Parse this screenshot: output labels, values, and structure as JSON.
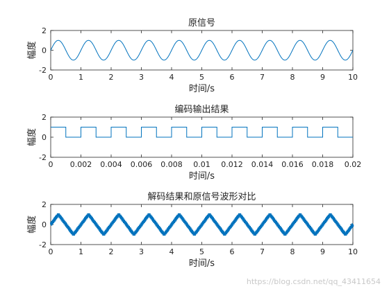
{
  "watermark": "https://blog.csdn.net/qq_43411654",
  "colors": {
    "line": "#0072BD",
    "axis": "#262626",
    "background": "#ffffff"
  },
  "chart_data": [
    {
      "type": "line",
      "title": "原信号",
      "xlabel": "时间/s",
      "ylabel": "幅度",
      "xlim": [
        0,
        10
      ],
      "ylim": [
        -2,
        2
      ],
      "xticks": [
        "0",
        "1",
        "2",
        "3",
        "4",
        "5",
        "6",
        "7",
        "8",
        "9",
        "10"
      ],
      "yticks": [
        "2",
        "0",
        "-2"
      ],
      "signal": {
        "kind": "sine",
        "amplitude": 1,
        "frequency_hz": 1,
        "phase_note": "starts at 0 rising",
        "x_range": [
          0,
          10
        ]
      },
      "grid": false
    },
    {
      "type": "line",
      "title": "编码输出结果",
      "xlabel": "时间/s",
      "ylabel": "幅度",
      "xlim": [
        0,
        0.02
      ],
      "ylim": [
        -2,
        2
      ],
      "xticks": [
        "0",
        "0.002",
        "0.004",
        "0.006",
        "0.008",
        "0.01",
        "0.012",
        "0.014",
        "0.016",
        "0.018",
        "0.02"
      ],
      "yticks": [
        "2",
        "0",
        "-2"
      ],
      "signal": {
        "kind": "pulse",
        "high": 1,
        "low": 0,
        "period": 0.002,
        "high_duration": 0.001,
        "first_high_end": 0.001,
        "x_range": [
          0,
          0.02
        ]
      },
      "grid": false
    },
    {
      "type": "line",
      "title": "解码结果和原信号波形对比",
      "xlabel": "时间/s",
      "ylabel": "幅度",
      "xlim": [
        0,
        10
      ],
      "ylim": [
        -2,
        2
      ],
      "xticks": [
        "0",
        "1",
        "2",
        "3",
        "4",
        "5",
        "6",
        "7",
        "8",
        "9",
        "10"
      ],
      "yticks": [
        "2",
        "0",
        "-2"
      ],
      "signal": {
        "kind": "staircase-triangle",
        "amplitude": 1,
        "frequency_hz": 1,
        "step_size": 0.125,
        "x_range": [
          0,
          10
        ]
      },
      "grid": false
    }
  ]
}
